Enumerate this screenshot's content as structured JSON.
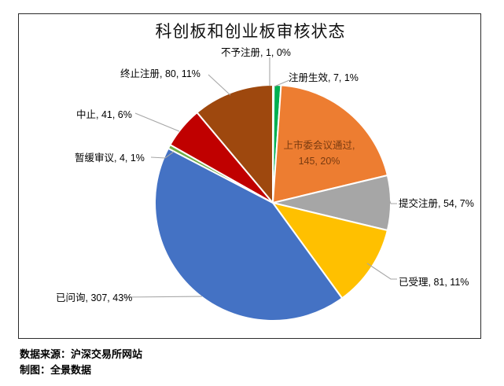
{
  "chart_data": {
    "type": "pie",
    "title": "科创板和创业板审核状态",
    "total": 720,
    "direction": "clockwise",
    "start_angle_deg": 0,
    "slices": [
      {
        "label": "不予注册",
        "value": 1,
        "pct": "0%",
        "color": "#3b3838",
        "label_text": "不予注册, 1, 0%"
      },
      {
        "label": "注册生效",
        "value": 7,
        "pct": "1%",
        "color": "#00b050",
        "label_text": "注册生效, 7, 1%"
      },
      {
        "label": "上市委会议通过",
        "value": 145,
        "pct": "20%",
        "color": "#ed7d31",
        "label_text": "上市委会议通过, 145, 20%",
        "label_line1": "上市委会议通过,",
        "label_line2": "145, 20%"
      },
      {
        "label": "提交注册",
        "value": 54,
        "pct": "7%",
        "color": "#a6a6a6",
        "label_text": "提交注册, 54, 7%"
      },
      {
        "label": "已受理",
        "value": 81,
        "pct": "11%",
        "color": "#ffc000",
        "label_text": "已受理, 81, 11%"
      },
      {
        "label": "已问询",
        "value": 307,
        "pct": "43%",
        "color": "#4472c4",
        "label_text": "已问询, 307, 43%"
      },
      {
        "label": "暂缓审议",
        "value": 4,
        "pct": "1%",
        "color": "#70ad47",
        "label_text": "暂缓审议, 4, 1%"
      },
      {
        "label": "中止",
        "value": 41,
        "pct": "6%",
        "color": "#c00000",
        "label_text": "中止, 41, 6%"
      },
      {
        "label": "终止注册",
        "value": 80,
        "pct": "11%",
        "color": "#9e480e",
        "label_text": "终止注册, 80, 11%"
      }
    ]
  },
  "footer": {
    "source": "数据来源：沪深交易所网站",
    "credit": "制图：全景数据"
  }
}
